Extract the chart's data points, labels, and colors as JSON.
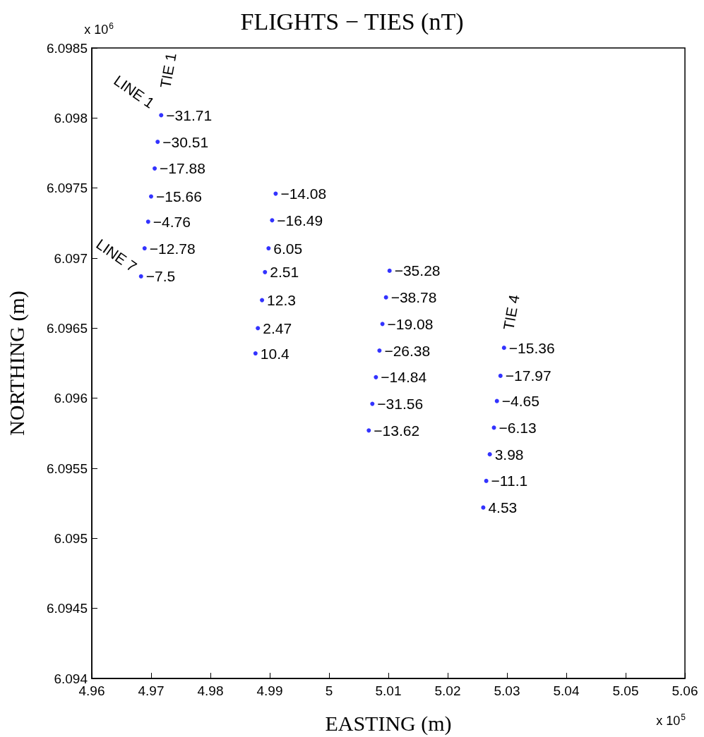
{
  "chart_data": {
    "type": "scatter",
    "title": "FLIGHTS − TIES (nT)",
    "xlabel": "EASTING (m)",
    "ylabel": "NORTHING (m)",
    "x": [
      4.9717,
      4.9711,
      4.9706,
      4.97,
      4.9695,
      4.9689,
      4.9683,
      4.991,
      4.9904,
      4.9898,
      4.9892,
      4.9887,
      4.988,
      4.9876,
      5.0102,
      5.0096,
      5.009,
      5.0085,
      5.0079,
      5.0073,
      5.0067,
      5.0295,
      5.0289,
      5.0283,
      5.0278,
      5.0271,
      5.0265,
      5.026
    ],
    "values": [
      6.09802,
      6.09783,
      6.09764,
      6.09744,
      6.09726,
      6.09707,
      6.09687,
      6.09746,
      6.09727,
      6.09707,
      6.0969,
      6.0967,
      6.0965,
      6.09632,
      6.09691,
      6.09672,
      6.09653,
      6.09634,
      6.09615,
      6.09596,
      6.09577,
      6.09636,
      6.09616,
      6.09598,
      6.09579,
      6.0956,
      6.09541,
      6.09522
    ],
    "color": "#0000ff",
    "marker": "circle",
    "grid": false,
    "xlim": [
      4.96,
      5.06
    ],
    "xticks": [
      4.96,
      4.97,
      4.98,
      4.99,
      5,
      5.01,
      5.02,
      5.03,
      5.04,
      5.05,
      5.06
    ],
    "ylim": [
      6.094,
      6.0985
    ],
    "yticks": [
      6.094,
      6.0945,
      6.095,
      6.0955,
      6.096,
      6.0965,
      6.097,
      6.0975,
      6.098,
      6.0985
    ],
    "annotations": [
      "LINE 1",
      "TIE 1",
      "LINE 7",
      "TIE 4",
      "x 10$^{6}$",
      "x 10$^{5}$",
      {
        "text": "−31.71",
        "x": 4.9717,
        "y": 6.09802
      },
      {
        "text": "−30.51",
        "x": 4.9711,
        "y": 6.09783
      },
      {
        "text": "−17.88",
        "x": 4.9706,
        "y": 6.09764
      },
      {
        "text": "−15.66",
        "x": 4.97,
        "y": 6.09744
      },
      {
        "text": "−4.76",
        "x": 4.9695,
        "y": 6.09726
      },
      {
        "text": "−12.78",
        "x": 4.9689,
        "y": 6.09707
      },
      {
        "text": "−7.5",
        "x": 4.9683,
        "y": 6.09687
      },
      {
        "text": "−14.08",
        "x": 4.991,
        "y": 6.09746
      },
      {
        "text": "−16.49",
        "x": 4.9904,
        "y": 6.09727
      },
      {
        "text": "6.05",
        "x": 4.9898,
        "y": 6.09707
      },
      {
        "text": "2.51",
        "x": 4.9892,
        "y": 6.0969
      },
      {
        "text": "12.3",
        "x": 4.9887,
        "y": 6.0967
      },
      {
        "text": "2.47",
        "x": 4.988,
        "y": 6.0965
      },
      {
        "text": "10.4",
        "x": 4.9876,
        "y": 6.09632
      },
      {
        "text": "−35.28",
        "x": 5.0102,
        "y": 6.09691
      },
      {
        "text": "−38.78",
        "x": 5.0096,
        "y": 6.09672
      },
      {
        "text": "−19.08",
        "x": 5.009,
        "y": 6.09653
      },
      {
        "text": "−26.38",
        "x": 5.0085,
        "y": 6.09634
      },
      {
        "text": "−14.84",
        "x": 5.0079,
        "y": 6.09615
      },
      {
        "text": "−31.56",
        "x": 5.0073,
        "y": 6.09596
      },
      {
        "text": "−13.62",
        "x": 5.0067,
        "y": 6.09577
      },
      {
        "text": "−15.36",
        "x": 5.0295,
        "y": 6.09636
      },
      {
        "text": "−17.97",
        "x": 5.0289,
        "y": 6.09616
      },
      {
        "text": "−4.65",
        "x": 5.0283,
        "y": 6.09598
      },
      {
        "text": "−6.13",
        "x": 5.0278,
        "y": 6.09579
      },
      {
        "text": "3.98",
        "x": 5.0271,
        "y": 6.0956
      },
      {
        "text": "−11.1",
        "x": 5.0265,
        "y": 6.09541
      },
      {
        "text": "4.53",
        "x": 5.026,
        "y": 6.09522
      }
    ]
  }
}
